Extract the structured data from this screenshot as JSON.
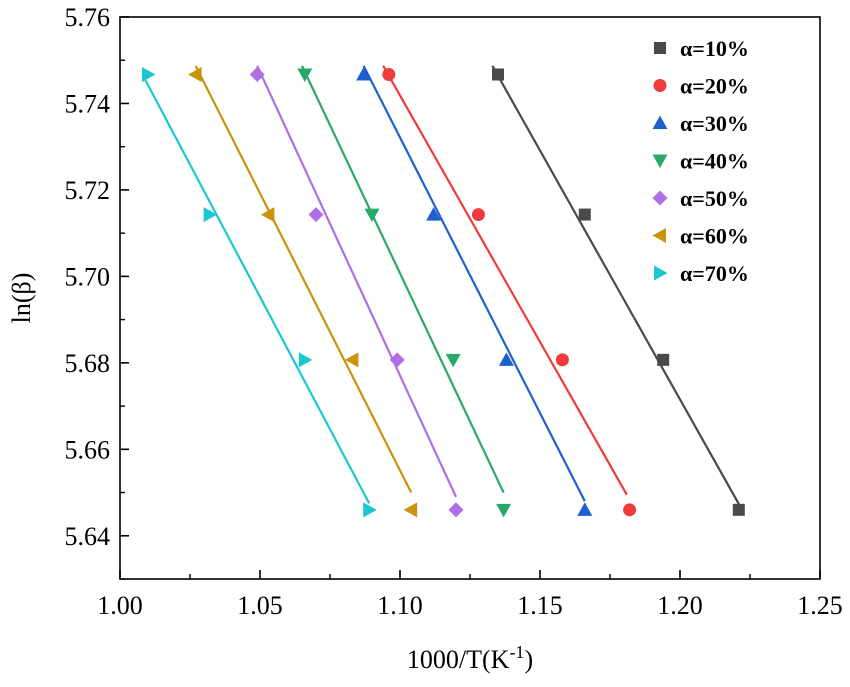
{
  "chart_data": {
    "type": "scatter",
    "title": "",
    "xlabel": "1000/T(K",
    "xlabel_sup": "-1",
    "xlabel_close": ")",
    "ylabel": "ln(β)",
    "xlim": [
      1.0,
      1.25
    ],
    "ylim": [
      5.63,
      5.76
    ],
    "xticks": [
      "1.00",
      "1.05",
      "1.10",
      "1.15",
      "1.20",
      "1.25"
    ],
    "yticks": [
      "5.64",
      "5.66",
      "5.68",
      "5.70",
      "5.72",
      "5.74",
      "5.76"
    ],
    "legend_position": "top-right",
    "series": [
      {
        "name": "α=10%",
        "marker": "square",
        "color": "#4a4a4a",
        "x": [
          1.135,
          1.166,
          1.194,
          1.221
        ],
        "y": [
          5.7467,
          5.7143,
          5.6807,
          5.646
        ],
        "fit": [
          [
            1.133,
            5.7487
          ],
          [
            1.222,
            5.6462
          ]
        ]
      },
      {
        "name": "α=20%",
        "marker": "circle",
        "color": "#ef3b3b",
        "x": [
          1.096,
          1.128,
          1.158,
          1.182
        ],
        "y": [
          5.7467,
          5.7143,
          5.6807,
          5.646
        ],
        "fit": [
          [
            1.094,
            5.7487
          ],
          [
            1.181,
            5.6495
          ]
        ]
      },
      {
        "name": "α=30%",
        "marker": "triangle-up",
        "color": "#1f5fd0",
        "x": [
          1.087,
          1.112,
          1.138,
          1.166
        ],
        "y": [
          5.7467,
          5.7143,
          5.6807,
          5.646
        ],
        "fit": [
          [
            1.087,
            5.7487
          ],
          [
            1.166,
            5.648
          ]
        ]
      },
      {
        "name": "α=40%",
        "marker": "triangle-down",
        "color": "#2aa86a",
        "x": [
          1.066,
          1.09,
          1.119,
          1.137
        ],
        "y": [
          5.7467,
          5.7143,
          5.6807,
          5.646
        ],
        "fit": [
          [
            1.065,
            5.7487
          ],
          [
            1.137,
            5.65
          ]
        ]
      },
      {
        "name": "α=50%",
        "marker": "diamond",
        "color": "#b06ee6",
        "x": [
          1.049,
          1.07,
          1.099,
          1.12
        ],
        "y": [
          5.7467,
          5.7143,
          5.6807,
          5.646
        ],
        "fit": [
          [
            1.049,
            5.7487
          ],
          [
            1.12,
            5.649
          ]
        ]
      },
      {
        "name": "α=60%",
        "marker": "triangle-left",
        "color": "#c9930a",
        "x": [
          1.027,
          1.053,
          1.083,
          1.104
        ],
        "y": [
          5.7467,
          5.7143,
          5.6807,
          5.646
        ],
        "fit": [
          [
            1.027,
            5.7487
          ],
          [
            1.104,
            5.65
          ]
        ]
      },
      {
        "name": "α=70%",
        "marker": "triangle-right",
        "color": "#1cc8cf",
        "x": [
          1.01,
          1.032,
          1.066,
          1.089
        ],
        "y": [
          5.7467,
          5.7143,
          5.6807,
          5.646
        ],
        "fit": [
          [
            1.008,
            5.7467
          ],
          [
            1.089,
            5.6475
          ]
        ]
      }
    ]
  }
}
